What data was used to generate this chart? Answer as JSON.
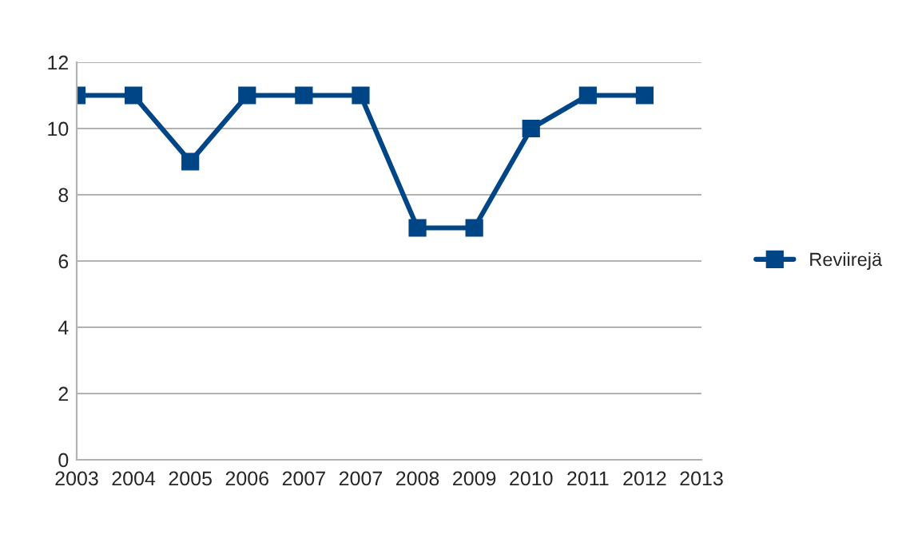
{
  "chart_data": {
    "type": "line",
    "categories": [
      "2003",
      "2004",
      "2005",
      "2006",
      "2007",
      "2007",
      "2008",
      "2009",
      "2010",
      "2011",
      "2012",
      "2013"
    ],
    "series": [
      {
        "name": "Reviirejä",
        "color": "#004586",
        "values": [
          11,
          11,
          9,
          11,
          11,
          11,
          7,
          7,
          10,
          11,
          11,
          null
        ]
      }
    ],
    "ylim": [
      0,
      12
    ],
    "yticks": [
      0,
      2,
      4,
      6,
      8,
      10,
      12
    ],
    "grid": "y",
    "legend": "right",
    "marker": "square",
    "line_style": "solid"
  }
}
